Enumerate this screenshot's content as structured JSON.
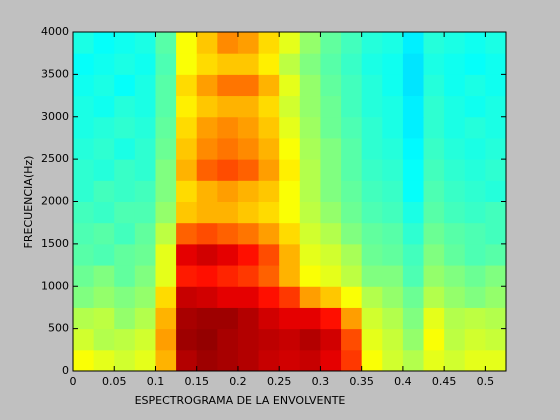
{
  "chart_data": {
    "type": "heatmap",
    "xlabel": "ESPECTROGRAMA DE LA ENVOLVENTE",
    "ylabel": "FRECUENCIA(Hz)",
    "colormap": "jet",
    "clim": [
      0,
      1
    ],
    "xlim": [
      0,
      0.525
    ],
    "ylim": [
      0,
      4000
    ],
    "xticks": [
      0,
      0.05,
      0.1,
      0.15,
      0.2,
      0.25,
      0.3,
      0.35,
      0.4,
      0.45,
      0.5
    ],
    "yticks": [
      0,
      500,
      1000,
      1500,
      2000,
      2500,
      3000,
      3500,
      4000
    ],
    "x": [
      0.0125,
      0.0375,
      0.0625,
      0.0875,
      0.1125,
      0.1375,
      0.1625,
      0.1875,
      0.2125,
      0.2375,
      0.2625,
      0.2875,
      0.3125,
      0.3375,
      0.3625,
      0.3875,
      0.4125,
      0.4375,
      0.4625,
      0.4875,
      0.5125
    ],
    "y": [
      125,
      375,
      625,
      875,
      1125,
      1375,
      1625,
      1875,
      2125,
      2375,
      2625,
      2875,
      3125,
      3375,
      3625,
      3875
    ],
    "values": [
      [
        0.62,
        0.6,
        0.58,
        0.6,
        0.7,
        0.95,
        0.97,
        0.96,
        0.95,
        0.93,
        0.92,
        0.93,
        0.9,
        0.82,
        0.62,
        0.58,
        0.55,
        0.6,
        0.58,
        0.6,
        0.6
      ],
      [
        0.58,
        0.55,
        0.56,
        0.58,
        0.72,
        0.97,
        0.98,
        0.96,
        0.95,
        0.94,
        0.93,
        0.95,
        0.92,
        0.8,
        0.6,
        0.57,
        0.52,
        0.62,
        0.56,
        0.58,
        0.57
      ],
      [
        0.55,
        0.56,
        0.52,
        0.55,
        0.7,
        0.96,
        0.97,
        0.97,
        0.95,
        0.92,
        0.9,
        0.9,
        0.86,
        0.72,
        0.58,
        0.55,
        0.5,
        0.6,
        0.55,
        0.56,
        0.55
      ],
      [
        0.5,
        0.52,
        0.5,
        0.52,
        0.66,
        0.93,
        0.92,
        0.9,
        0.9,
        0.86,
        0.82,
        0.72,
        0.68,
        0.62,
        0.55,
        0.52,
        0.48,
        0.55,
        0.52,
        0.5,
        0.52
      ],
      [
        0.48,
        0.5,
        0.47,
        0.5,
        0.6,
        0.85,
        0.86,
        0.84,
        0.82,
        0.78,
        0.7,
        0.62,
        0.6,
        0.56,
        0.5,
        0.5,
        0.45,
        0.52,
        0.5,
        0.48,
        0.5
      ],
      [
        0.46,
        0.45,
        0.47,
        0.48,
        0.6,
        0.9,
        0.92,
        0.9,
        0.86,
        0.8,
        0.7,
        0.6,
        0.58,
        0.54,
        0.48,
        0.47,
        0.44,
        0.5,
        0.47,
        0.45,
        0.46
      ],
      [
        0.45,
        0.46,
        0.44,
        0.47,
        0.56,
        0.78,
        0.8,
        0.78,
        0.76,
        0.72,
        0.66,
        0.58,
        0.55,
        0.5,
        0.47,
        0.46,
        0.42,
        0.48,
        0.46,
        0.45,
        0.44
      ],
      [
        0.44,
        0.43,
        0.45,
        0.45,
        0.52,
        0.68,
        0.7,
        0.7,
        0.68,
        0.66,
        0.62,
        0.56,
        0.52,
        0.48,
        0.45,
        0.44,
        0.4,
        0.46,
        0.44,
        0.43,
        0.44
      ],
      [
        0.42,
        0.44,
        0.43,
        0.44,
        0.5,
        0.66,
        0.7,
        0.72,
        0.7,
        0.68,
        0.62,
        0.55,
        0.5,
        0.47,
        0.44,
        0.43,
        0.38,
        0.45,
        0.43,
        0.42,
        0.41
      ],
      [
        0.42,
        0.41,
        0.43,
        0.42,
        0.5,
        0.7,
        0.78,
        0.8,
        0.78,
        0.72,
        0.64,
        0.55,
        0.5,
        0.46,
        0.43,
        0.42,
        0.38,
        0.44,
        0.42,
        0.41,
        0.42
      ],
      [
        0.41,
        0.42,
        0.4,
        0.42,
        0.48,
        0.68,
        0.74,
        0.76,
        0.74,
        0.7,
        0.62,
        0.54,
        0.5,
        0.46,
        0.42,
        0.41,
        0.37,
        0.43,
        0.41,
        0.4,
        0.41
      ],
      [
        0.4,
        0.41,
        0.42,
        0.41,
        0.47,
        0.66,
        0.72,
        0.74,
        0.72,
        0.68,
        0.6,
        0.53,
        0.48,
        0.45,
        0.42,
        0.4,
        0.36,
        0.42,
        0.4,
        0.41,
        0.4
      ],
      [
        0.4,
        0.39,
        0.41,
        0.4,
        0.46,
        0.64,
        0.68,
        0.7,
        0.7,
        0.66,
        0.58,
        0.52,
        0.48,
        0.44,
        0.41,
        0.4,
        0.36,
        0.42,
        0.4,
        0.39,
        0.4
      ],
      [
        0.39,
        0.4,
        0.38,
        0.4,
        0.46,
        0.66,
        0.72,
        0.76,
        0.76,
        0.7,
        0.6,
        0.52,
        0.47,
        0.44,
        0.41,
        0.39,
        0.35,
        0.41,
        0.39,
        0.4,
        0.39
      ],
      [
        0.38,
        0.39,
        0.4,
        0.39,
        0.45,
        0.62,
        0.66,
        0.68,
        0.68,
        0.64,
        0.56,
        0.5,
        0.46,
        0.43,
        0.4,
        0.39,
        0.35,
        0.4,
        0.39,
        0.38,
        0.39
      ],
      [
        0.4,
        0.38,
        0.39,
        0.4,
        0.46,
        0.62,
        0.68,
        0.74,
        0.72,
        0.66,
        0.6,
        0.52,
        0.47,
        0.44,
        0.41,
        0.4,
        0.36,
        0.41,
        0.4,
        0.39,
        0.4
      ]
    ]
  }
}
